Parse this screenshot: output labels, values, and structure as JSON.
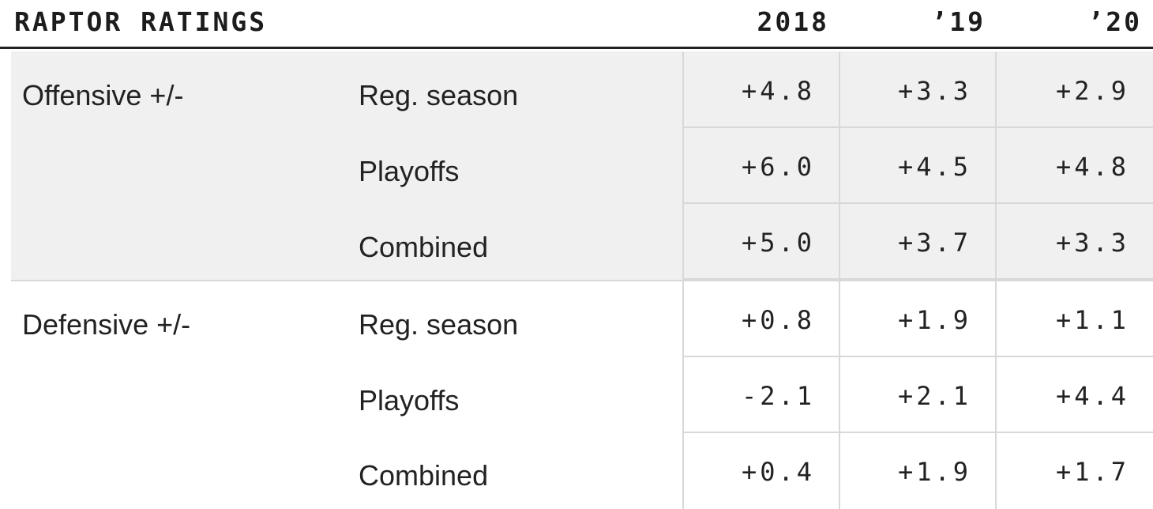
{
  "table": {
    "title": "RAPTOR RATINGS",
    "columns": [
      "2018",
      "’19",
      "’20"
    ],
    "groups": [
      {
        "label": "Offensive +/-",
        "rows": [
          {
            "label": "Reg. season",
            "values": [
              "+4.8",
              "+3.3",
              "+2.9"
            ]
          },
          {
            "label": "Playoffs",
            "values": [
              "+6.0",
              "+4.5",
              "+4.8"
            ]
          },
          {
            "label": "Combined",
            "values": [
              "+5.0",
              "+3.7",
              "+3.3"
            ]
          }
        ]
      },
      {
        "label": "Defensive +/-",
        "rows": [
          {
            "label": "Reg. season",
            "values": [
              "+0.8",
              "+1.9",
              "+1.1"
            ]
          },
          {
            "label": "Playoffs",
            "values": [
              "-2.1",
              "+2.1",
              "+4.4"
            ]
          },
          {
            "label": "Combined",
            "values": [
              "+0.4",
              "+1.9",
              "+1.7"
            ]
          }
        ]
      }
    ],
    "colors": {
      "shaded_group": "#f0f0f0",
      "grid": "#d8d8d8",
      "header_rule": "#222222"
    }
  },
  "chart_data": {
    "type": "table",
    "title": "RAPTOR RATINGS",
    "columns": [
      "2018",
      "’19",
      "’20"
    ],
    "rows": [
      {
        "group": "Offensive +/-",
        "label": "Reg. season",
        "values": [
          4.8,
          3.3,
          2.9
        ]
      },
      {
        "group": "Offensive +/-",
        "label": "Playoffs",
        "values": [
          6.0,
          4.5,
          4.8
        ]
      },
      {
        "group": "Offensive +/-",
        "label": "Combined",
        "values": [
          5.0,
          3.7,
          3.3
        ]
      },
      {
        "group": "Defensive +/-",
        "label": "Reg. season",
        "values": [
          0.8,
          1.9,
          1.1
        ]
      },
      {
        "group": "Defensive +/-",
        "label": "Playoffs",
        "values": [
          -2.1,
          2.1,
          4.4
        ]
      },
      {
        "group": "Defensive +/-",
        "label": "Combined",
        "values": [
          0.4,
          1.9,
          1.7
        ]
      }
    ]
  }
}
